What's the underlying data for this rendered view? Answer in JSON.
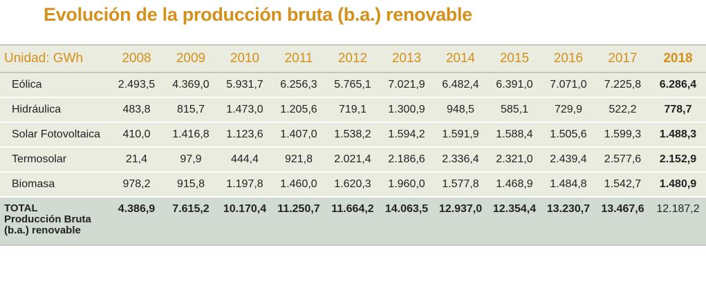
{
  "title": "Evolución de la producción bruta (b.a.) renovable",
  "table": {
    "unit_label": "Unidad: GWh",
    "years": [
      "2008",
      "2009",
      "2010",
      "2011",
      "2012",
      "2013",
      "2014",
      "2015",
      "2016",
      "2017",
      "2018"
    ],
    "rows": [
      {
        "label": "Eólica",
        "values": [
          "2.493,5",
          "4.369,0",
          "5.931,7",
          "6.256,3",
          "5.765,1",
          "7.021,9",
          "6.482,4",
          "6.391,0",
          "7.071,0",
          "7.225,8",
          "6.286,4"
        ]
      },
      {
        "label": "Hidráulica",
        "values": [
          "483,8",
          "815,7",
          "1.473,0",
          "1.205,6",
          "719,1",
          "1.300,9",
          "948,5",
          "585,1",
          "729,9",
          "522,2",
          "778,7"
        ]
      },
      {
        "label": "Solar Fotovoltaica",
        "values": [
          "410,0",
          "1.416,8",
          "1.123,6",
          "1.407,0",
          "1.538,2",
          "1.594,2",
          "1.591,9",
          "1.588,4",
          "1.505,6",
          "1.599,3",
          "1.488,3"
        ]
      },
      {
        "label": "Termosolar",
        "values": [
          "21,4",
          "97,9",
          "444,4",
          "921,8",
          "2.021,4",
          "2.186,6",
          "2.336,4",
          "2.321,0",
          "2.439,4",
          "2.577,6",
          "2.152,9"
        ]
      },
      {
        "label": "Biomasa",
        "values": [
          "978,2",
          "915,8",
          "1.197,8",
          "1.460,0",
          "1.620,3",
          "1.960,0",
          "1.577,8",
          "1.468,9",
          "1.484,8",
          "1.542,7",
          "1.480,9"
        ]
      }
    ],
    "total": {
      "label_lines": [
        "TOTAL",
        "Producción Bruta",
        "(b.a.) renovable"
      ],
      "values": [
        "4.386,9",
        "7.615,2",
        "10.170,4",
        "11.250,7",
        "11.664,2",
        "14.063,5",
        "12.937,0",
        "12.354,4",
        "13.230,7",
        "13.467,6",
        "12.187,2"
      ]
    }
  }
}
